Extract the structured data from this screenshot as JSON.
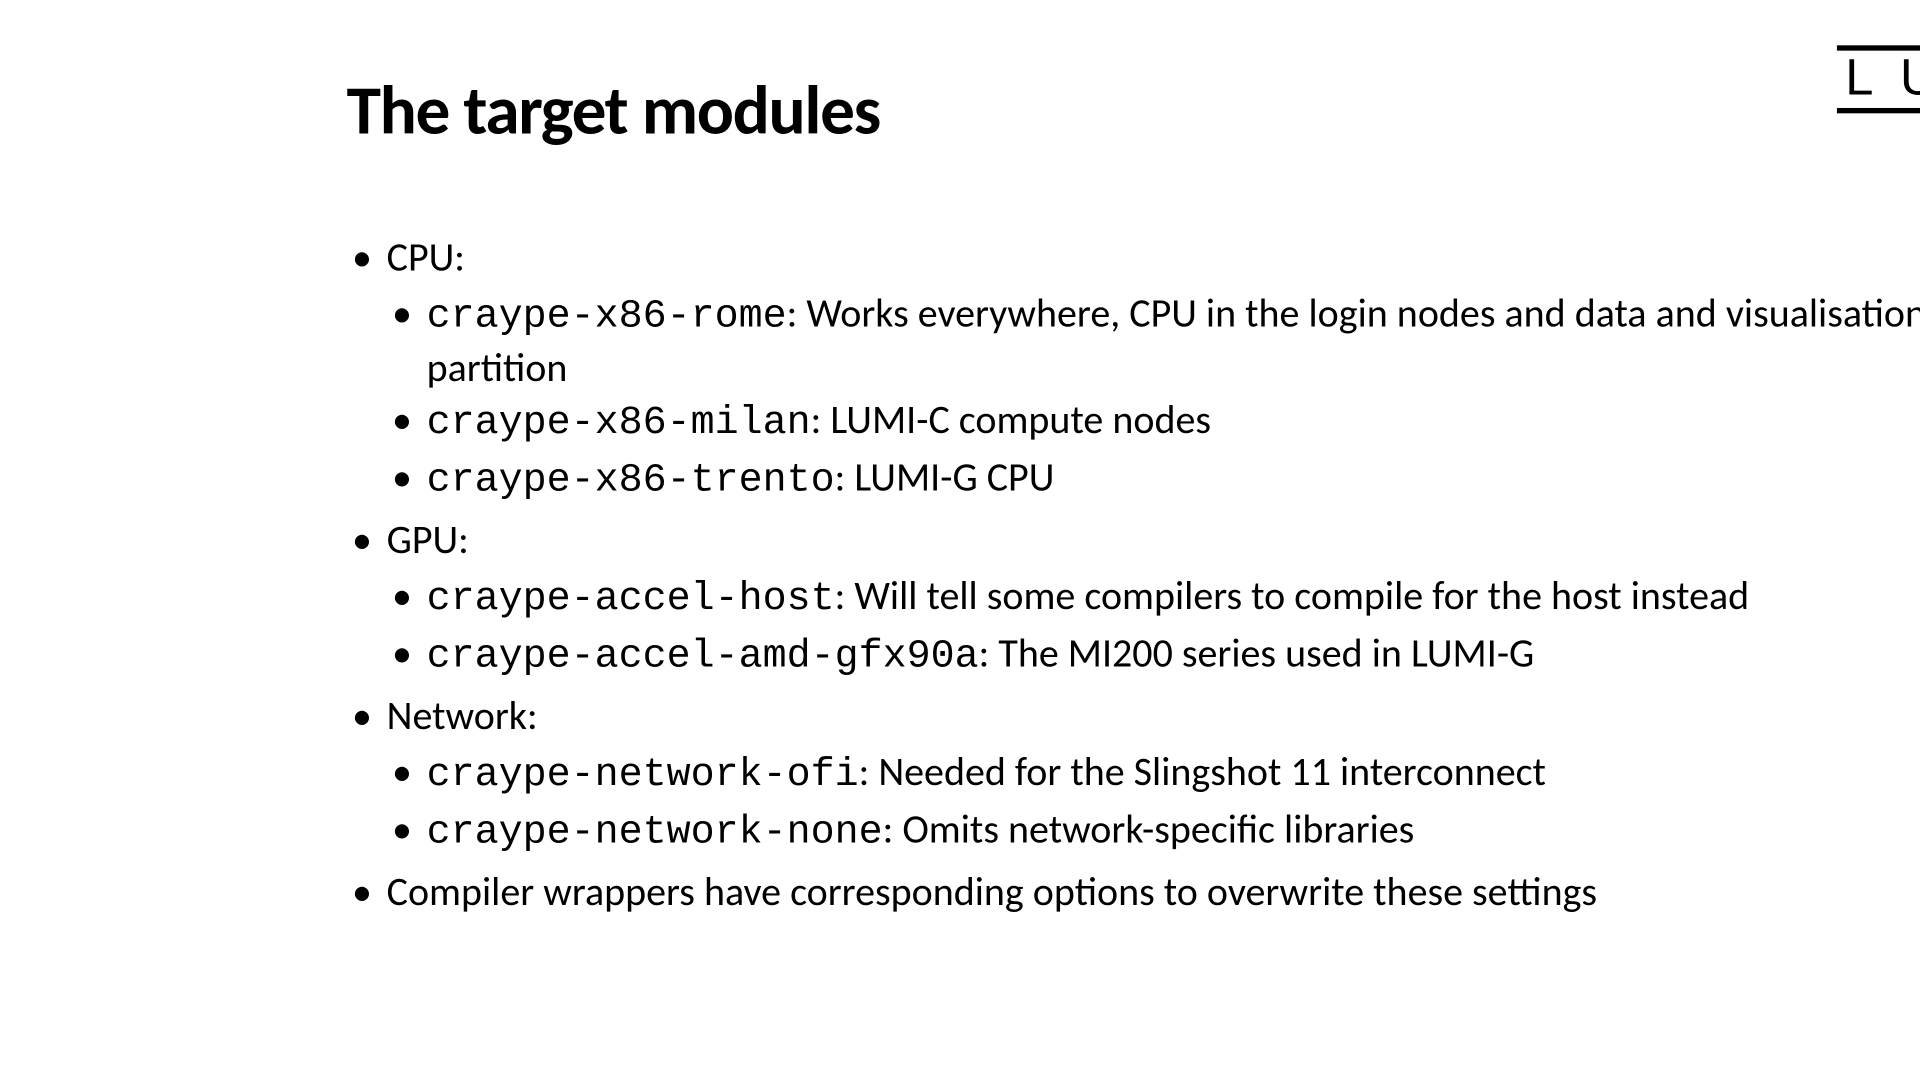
{
  "title": "The target modules",
  "logo": "LUMI",
  "sections": [
    {
      "heading": "CPU:",
      "items": [
        {
          "code": "craype-x86-rome",
          "desc": ": Works everywhere, CPU in the login nodes and data and visualisation partition"
        },
        {
          "code": "craype-x86-milan",
          "desc": ": LUMI-C compute nodes"
        },
        {
          "code": "craype-x86-trento",
          "desc": ": LUMI-G CPU"
        }
      ]
    },
    {
      "heading": "GPU:",
      "items": [
        {
          "code": "craype-accel-host",
          "desc": ": Will tell some compilers to compile for the host instead"
        },
        {
          "code": "craype-accel-amd-gfx90a",
          "desc": ": The MI200 series used in LUMI-G"
        }
      ]
    },
    {
      "heading": "Network:",
      "items": [
        {
          "code": "craype-network-ofi",
          "desc": ": Needed for the Slingshot 11 interconnect"
        },
        {
          "code": "craype-network-none",
          "desc": ": Omits network-specific libraries"
        }
      ]
    }
  ],
  "footer": "Compiler wrappers have corresponding options to overwrite these settings",
  "colors": {
    "background": "#ffffff",
    "text": "#000000"
  },
  "typography": {
    "title_fontsize": 52,
    "body_fontsize": 30,
    "code_font": "Courier New"
  }
}
